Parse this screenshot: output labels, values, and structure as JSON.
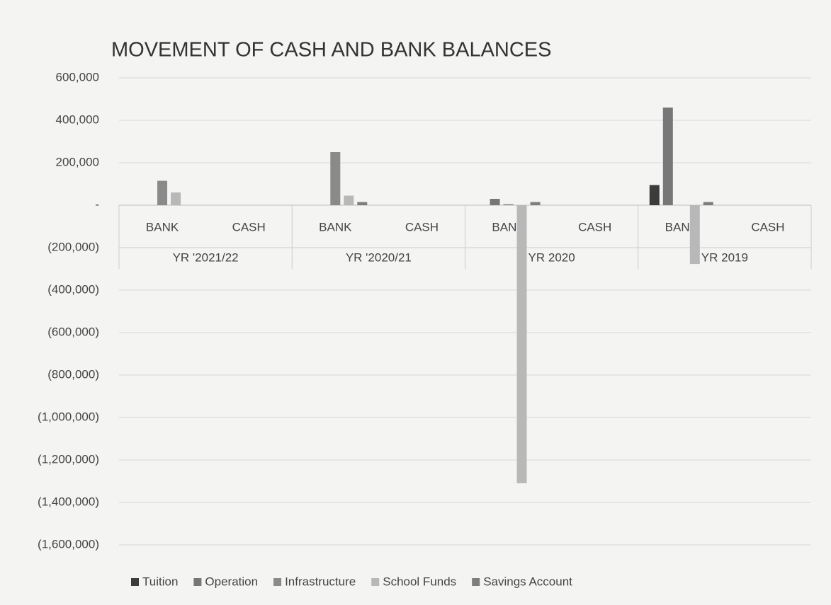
{
  "chart_data": {
    "type": "bar",
    "title": "MOVEMENT OF CASH AND BANK BALANCES",
    "categories": [
      "BANK",
      "CASH",
      "BANK",
      "CASH",
      "BANK",
      "CASH",
      "BANK",
      "CASH"
    ],
    "groups": [
      "YR '2021/22",
      "YR '2020/21",
      "YR 2020",
      "YR 2019"
    ],
    "series": [
      {
        "name": "Tuition",
        "color": "#3c3c3c",
        "values": [
          0,
          0,
          0,
          0,
          0,
          0,
          95000,
          0
        ]
      },
      {
        "name": "Operation",
        "color": "#777777",
        "values": [
          0,
          0,
          0,
          0,
          30000,
          0,
          460000,
          0
        ]
      },
      {
        "name": "Infrastructure",
        "color": "#8a8a8a",
        "values": [
          115000,
          0,
          250000,
          0,
          5000,
          0,
          0,
          0
        ]
      },
      {
        "name": "School Funds",
        "color": "#b8b8b8",
        "values": [
          60000,
          0,
          45000,
          0,
          -1310000,
          0,
          -277000,
          0
        ]
      },
      {
        "name": "Savings Account",
        "color": "#7e7e7e",
        "values": [
          0,
          0,
          15000,
          0,
          15000,
          0,
          15000,
          0
        ]
      }
    ],
    "ylim": [
      -1600000,
      600000
    ],
    "yticks": [
      {
        "value": 600000,
        "label": "600,000"
      },
      {
        "value": 400000,
        "label": "400,000"
      },
      {
        "value": 200000,
        "label": "200,000"
      },
      {
        "value": 0,
        "label": "-"
      },
      {
        "value": -200000,
        "label": "(200,000)"
      },
      {
        "value": -400000,
        "label": "(400,000)"
      },
      {
        "value": -600000,
        "label": "(600,000)"
      },
      {
        "value": -800000,
        "label": "(800,000)"
      },
      {
        "value": -1000000,
        "label": "(1,000,000)"
      },
      {
        "value": -1200000,
        "label": "(1,200,000)"
      },
      {
        "value": -1400000,
        "label": "(1,400,000)"
      },
      {
        "value": -1600000,
        "label": "(1,600,000)"
      }
    ],
    "grid": true,
    "legend": "bottom"
  }
}
